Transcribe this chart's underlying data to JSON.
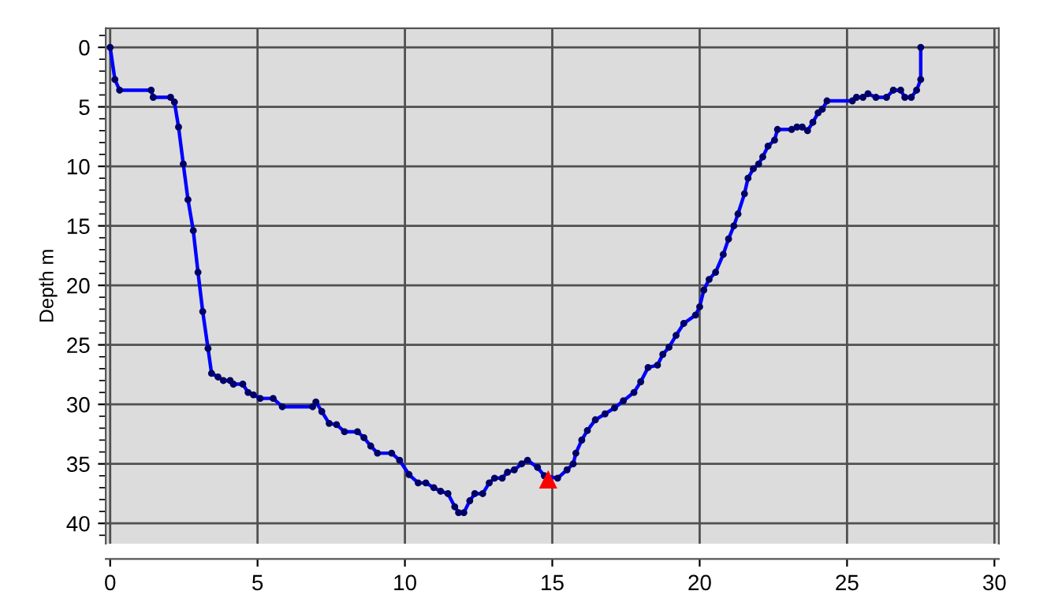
{
  "chart_data": {
    "type": "line",
    "ylabel": "Depth m",
    "xlim": [
      -0.15,
      30.15
    ],
    "xticks": [
      0,
      5,
      10,
      15,
      20,
      25,
      30
    ],
    "ylim": [
      41.7,
      -1.6
    ],
    "yticks": [
      0,
      5,
      10,
      15,
      20,
      25,
      30,
      35,
      40
    ],
    "grid": true,
    "legend": false,
    "series": [
      {
        "color": "#0000ff",
        "marker": "circle",
        "line_style": "solid",
        "x": [
          0,
          0.16,
          0.32,
          1.39,
          1.46,
          2.05,
          2.18,
          2.32,
          2.48,
          2.64,
          2.82,
          2.98,
          3.14,
          3.32,
          3.44,
          3.66,
          3.84,
          4.07,
          4.18,
          4.5,
          4.68,
          4.86,
          5.09,
          5.53,
          5.84,
          6.87,
          6.98,
          7.18,
          7.43,
          7.68,
          7.95,
          8.39,
          8.61,
          8.84,
          9.07,
          9.55,
          9.82,
          10.14,
          10.45,
          10.71,
          10.98,
          11.21,
          11.46,
          11.69,
          11.82,
          12.0,
          12.2,
          12.37,
          12.64,
          12.86,
          13.04,
          13.3,
          13.48,
          13.71,
          13.96,
          14.16,
          14.5,
          14.73,
          15.18,
          15.5,
          15.71,
          15.8,
          16.0,
          16.19,
          16.46,
          16.79,
          17.11,
          17.41,
          17.77,
          18.0,
          18.25,
          18.57,
          18.75,
          18.96,
          19.2,
          19.46,
          19.86,
          20.0,
          20.14,
          20.32,
          20.54,
          20.8,
          20.98,
          21.16,
          21.3,
          21.52,
          21.64,
          21.82,
          22.0,
          22.14,
          22.32,
          22.54,
          22.64,
          23.12,
          23.3,
          23.48,
          23.66,
          23.84,
          24.02,
          24.16,
          24.32,
          25.18,
          25.32,
          25.54,
          25.71,
          25.98,
          26.34,
          26.57,
          26.82,
          26.96,
          27.18,
          27.36,
          27.5,
          27.5
        ],
        "values": [
          0,
          2.7,
          3.6,
          3.6,
          4.2,
          4.2,
          4.6,
          6.7,
          9.8,
          12.8,
          15.4,
          18.9,
          22.2,
          25.3,
          27.4,
          27.7,
          28.0,
          28.0,
          28.3,
          28.3,
          29.0,
          29.2,
          29.5,
          29.5,
          30.2,
          30.2,
          29.8,
          30.6,
          31.6,
          31.7,
          32.3,
          32.3,
          32.8,
          33.5,
          34.1,
          34.1,
          34.7,
          35.9,
          36.6,
          36.6,
          37.0,
          37.3,
          37.5,
          38.6,
          39.1,
          39.1,
          38.1,
          37.5,
          37.5,
          36.6,
          36.2,
          36.2,
          35.7,
          35.5,
          35.0,
          34.7,
          35.3,
          36.0,
          36.2,
          35.5,
          35.0,
          34.1,
          33.0,
          32.2,
          31.3,
          30.8,
          30.3,
          29.7,
          29.0,
          28.1,
          26.9,
          26.7,
          25.8,
          25.2,
          24.2,
          23.2,
          22.5,
          21.8,
          20.4,
          19.5,
          18.9,
          17.4,
          16.1,
          15.0,
          14.0,
          12.3,
          11.0,
          10.2,
          9.8,
          9.2,
          8.3,
          7.8,
          6.9,
          6.9,
          6.7,
          6.7,
          7.0,
          6.3,
          5.5,
          5.2,
          4.5,
          4.5,
          4.2,
          4.2,
          3.9,
          4.2,
          4.2,
          3.6,
          3.6,
          4.2,
          4.2,
          3.6,
          2.7,
          0
        ]
      },
      {
        "type": "scatter",
        "color": "#ff0000",
        "marker": "triangle",
        "x": [
          14.86
        ],
        "values": [
          36.3
        ]
      }
    ]
  }
}
